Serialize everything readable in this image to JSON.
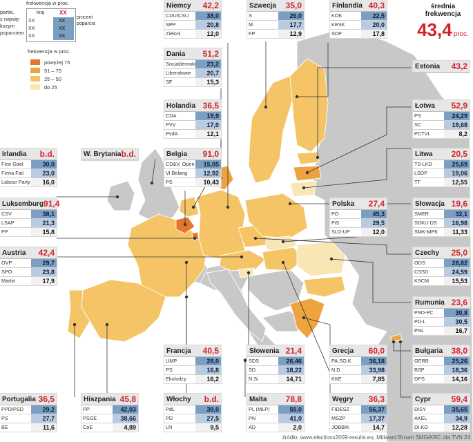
{
  "source": "źródło: www.elections2009-results.eu, Millward Brown SMG/KRC dla TVN 24",
  "average": {
    "label_line1": "średnia",
    "label_line2": "frekwencja",
    "value": "43,4",
    "unit": "proc."
  },
  "legend": {
    "frekwencja_top": "frekwencja w proc.",
    "kraj": "kraj",
    "xx": "XX",
    "partie_l1": "partie,",
    "partie_l2": "z najwię-",
    "partie_l3": "kszym",
    "partie_l4": "poparciem",
    "procent_l1": "procent",
    "procent_l2": "poparcia",
    "scale_title": "frekwencja w proc.",
    "items": [
      {
        "label": "powyżej 75",
        "color": "#e2762e"
      },
      {
        "label": "51 – 75",
        "color": "#eea340"
      },
      {
        "label": "25 – 50",
        "color": "#f4c467"
      },
      {
        "label": "do 25",
        "color": "#f9e6b5"
      }
    ]
  },
  "map_colors": {
    "sea": "#ffffff",
    "nonmember": "#c8c8c8",
    "borders": "#ffffff"
  },
  "countries": [
    {
      "name": "Niemcy",
      "turnout": "42,2",
      "parties": [
        [
          "CDU/CSU",
          "38,0"
        ],
        [
          "SPP",
          "20,8"
        ],
        [
          "Zieloni",
          "12,0"
        ]
      ]
    },
    {
      "name": "Szwecja",
      "turnout": "35,0",
      "parties": [
        [
          "S",
          "26,0"
        ],
        [
          "M",
          "17,7"
        ],
        [
          "FP",
          "12,9"
        ]
      ]
    },
    {
      "name": "Finlandia",
      "turnout": "40,3",
      "parties": [
        [
          "KOK",
          "22,5"
        ],
        [
          "KESK",
          "20,0"
        ],
        [
          "SDP",
          "17,8"
        ]
      ]
    },
    {
      "name": "Dania",
      "turnout": "51,2",
      "parties": [
        [
          "Socjaldemokraci",
          "23,2"
        ],
        [
          "Liberałowie",
          "20,7"
        ],
        [
          "SF",
          "15,3"
        ]
      ]
    },
    {
      "name": "Estonia",
      "turnout": "43,2",
      "parties": []
    },
    {
      "name": "Holandia",
      "turnout": "36,5",
      "parties": [
        [
          "CDA",
          "19,9"
        ],
        [
          "PVV",
          "17,0"
        ],
        [
          "PvdA",
          "12,1"
        ]
      ]
    },
    {
      "name": "Łotwa",
      "turnout": "52,9",
      "parties": [
        [
          "PS",
          "24,29"
        ],
        [
          "SC",
          "19,68"
        ],
        [
          "PCTVL",
          "8,2"
        ]
      ]
    },
    {
      "name": "Irlandia",
      "turnout": "b.d.",
      "parties": [
        [
          "Fine Gael",
          "30,0"
        ],
        [
          "Finna Fail",
          "23,0"
        ],
        [
          "Labour Party",
          "16,0"
        ]
      ]
    },
    {
      "name": "W. Brytania",
      "turnout": "b.d.",
      "parties": []
    },
    {
      "name": "Belgia",
      "turnout": "91,0",
      "parties": [
        [
          "CD&V, Open VLD",
          "15,05"
        ],
        [
          "Vl Belang",
          "12,92"
        ],
        [
          "PS",
          "10,43"
        ]
      ]
    },
    {
      "name": "Litwa",
      "turnout": "20,5",
      "parties": [
        [
          "TS-LKD",
          "25,69"
        ],
        [
          "LSDP",
          "19,06"
        ],
        [
          "TT",
          "12,55"
        ]
      ]
    },
    {
      "name": "Luksemburg",
      "turnout": "91,4",
      "parties": [
        [
          "CSV",
          "38,1"
        ],
        [
          "LSAP",
          "21,3"
        ],
        [
          "PP",
          "15,8"
        ]
      ]
    },
    {
      "name": "Polska",
      "turnout": "27,4",
      "parties": [
        [
          "PO",
          "45,3"
        ],
        [
          "PiS",
          "29,5"
        ],
        [
          "SLD-UP",
          "12,0"
        ]
      ]
    },
    {
      "name": "Słowacja",
      "turnout": "19,6",
      "parties": [
        [
          "SMER",
          "32,1"
        ],
        [
          "SDKU-DS",
          "16,98"
        ],
        [
          "SMK-MPK",
          "11,33"
        ]
      ]
    },
    {
      "name": "Austria",
      "turnout": "42,4",
      "parties": [
        [
          "OVP",
          "29,7"
        ],
        [
          "SPO",
          "23,8"
        ],
        [
          "Martin",
          "17,9"
        ]
      ]
    },
    {
      "name": "Czechy",
      "turnout": "25,0",
      "parties": [
        [
          "ODS",
          "28,82"
        ],
        [
          "CSSD",
          "24,59"
        ],
        [
          "KSCM",
          "15,53"
        ]
      ]
    },
    {
      "name": "Rumunia",
      "turnout": "23,6",
      "parties": [
        [
          "PSD-PC",
          "30,8"
        ],
        [
          "PD-L",
          "30,5"
        ],
        [
          "PNL",
          "16,7"
        ]
      ]
    },
    {
      "name": "Francja",
      "turnout": "40,5",
      "parties": [
        [
          "UMP",
          "28,0"
        ],
        [
          "PS",
          "16,8"
        ],
        [
          "Ekolodzy",
          "16,2"
        ]
      ]
    },
    {
      "name": "Słowenia",
      "turnout": "21,4",
      "parties": [
        [
          "SDS",
          "26,46"
        ],
        [
          "SD",
          "18,22"
        ],
        [
          "N.Si",
          "14,71"
        ]
      ]
    },
    {
      "name": "Grecja",
      "turnout": "60,0",
      "parties": [
        [
          "PA.SO.K",
          "36,18"
        ],
        [
          "N.D",
          "33,98"
        ],
        [
          "KKE",
          "7,85"
        ]
      ]
    },
    {
      "name": "Bułgaria",
      "turnout": "38,0",
      "parties": [
        [
          "GERB",
          "25,26"
        ],
        [
          "BSP",
          "18,36"
        ],
        [
          "DPS",
          "14,16"
        ]
      ]
    },
    {
      "name": "Portugalia",
      "turnout": "36,5",
      "parties": [
        [
          "PPD/PSD",
          "29,2"
        ],
        [
          "PS",
          "27,7"
        ],
        [
          "BE",
          "11,6"
        ]
      ]
    },
    {
      "name": "Hiszpania",
      "turnout": "45,8",
      "parties": [
        [
          "PP",
          "42,03"
        ],
        [
          "PSOE",
          "38,66"
        ],
        [
          "CoE",
          "4,89"
        ]
      ]
    },
    {
      "name": "Włochy",
      "turnout": "b.d.",
      "parties": [
        [
          "PdL",
          "39,0"
        ],
        [
          "PD",
          "27,5"
        ],
        [
          "LN",
          "9,5"
        ]
      ]
    },
    {
      "name": "Malta",
      "turnout": "78,8",
      "parties": [
        [
          "PL (MLP)",
          "55,0"
        ],
        [
          "PN",
          "41,0"
        ],
        [
          "AD",
          "2,0"
        ]
      ]
    },
    {
      "name": "Węgry",
      "turnout": "36,3",
      "parties": [
        [
          "FIDESZ",
          "56,37"
        ],
        [
          "MSZP",
          "17,37"
        ],
        [
          "JOBBIK",
          "14,7"
        ]
      ]
    },
    {
      "name": "Cypr",
      "turnout": "59,4",
      "parties": [
        [
          "DISY",
          "35,65"
        ],
        [
          "AKEL",
          "34,9"
        ],
        [
          "DI.KO",
          "12,28"
        ]
      ]
    }
  ]
}
